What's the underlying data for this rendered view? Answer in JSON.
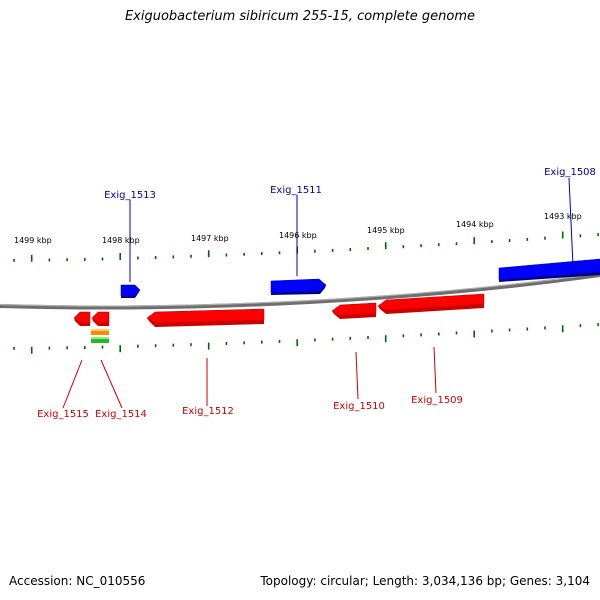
{
  "title": "Exiguobacterium sibiricum 255-15, complete genome",
  "footer": {
    "accession": "Accession: NC_010556",
    "summary": "Topology: circular; Length: 3,034,136 bp; Genes: 3,104"
  },
  "colors": {
    "forward_strand": "#0000ff",
    "reverse_strand": "#ff0000",
    "forward_label": "#0000aa",
    "reverse_label": "#cc0000",
    "tick": "#006600",
    "backbone": "#888888",
    "small_feature_orange": "#ff8800",
    "small_feature_green": "#22bb22"
  },
  "scale_labels": [
    "1499 kbp",
    "1498 kbp",
    "1497 kbp",
    "1496 kbp",
    "1495 kbp",
    "1494 kbp",
    "1493 kbp"
  ],
  "forward_genes": [
    "Exig_1513",
    "Exig_1511",
    "Exig_1508"
  ],
  "reverse_genes": [
    "Exig_1515",
    "Exig_1514",
    "Exig_1512",
    "Exig_1510",
    "Exig_1509"
  ]
}
